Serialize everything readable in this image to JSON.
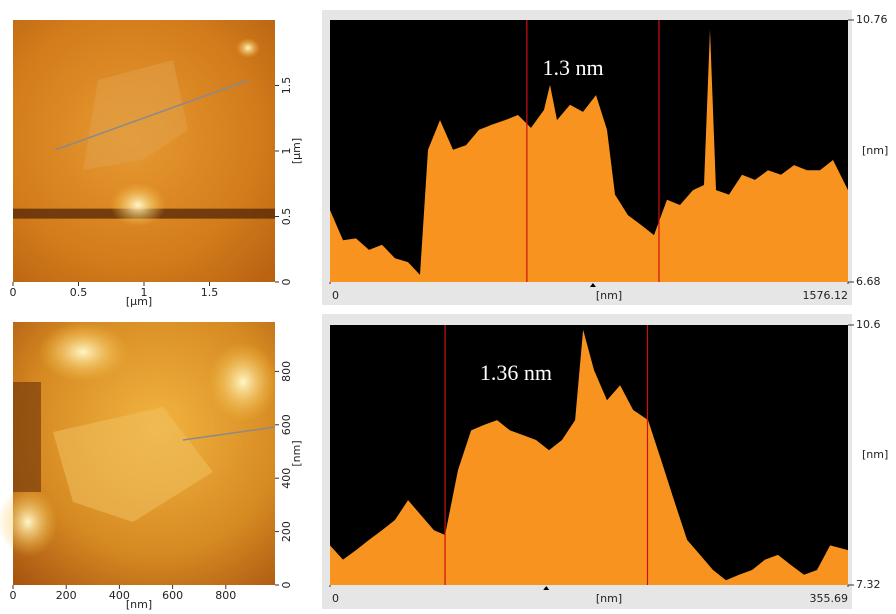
{
  "chart_data": [
    {
      "type": "afm-image",
      "xlim": [
        0,
        2
      ],
      "ylim": [
        0,
        2
      ],
      "xticks": [
        0,
        0.5,
        1,
        1.5
      ],
      "yticks": [
        0,
        0.5,
        1,
        1.5
      ],
      "xlabel": "[µm]",
      "ylabel": "[µm]"
    },
    {
      "type": "area",
      "annotation": "1.3 nm",
      "xlabel": "[nm]",
      "ylabel": "[nm]",
      "color": "#f7931e",
      "background": "#000000",
      "cursor_color": "#d01010",
      "xlim": [
        0,
        1576.12
      ],
      "ylim": [
        6.68,
        10.76
      ],
      "xticks": [
        0,
        1576.12
      ],
      "yticks": [
        6.68,
        10.76
      ],
      "cursors": [
        599,
        1001
      ],
      "x": [
        0,
        39.6,
        79.1,
        118.7,
        158.2,
        197.8,
        237.3,
        273.8,
        298.2,
        334.7,
        374.3,
        413.8,
        453.4,
        492.9,
        532.5,
        572.0,
        611.6,
        651.1,
        669.4,
        690.7,
        730.3,
        769.8,
        809.4,
        842.8,
        867.2,
        906.7,
        946.3,
        985.8,
        1025.4,
        1064.9,
        1104.5,
        1138.0,
        1156.2,
        1174.5,
        1214.0,
        1253.6,
        1293.1,
        1332.7,
        1372.3,
        1411.8,
        1451.4,
        1490.9,
        1530.5,
        1576.12
      ],
      "values": [
        7.8,
        7.33,
        7.36,
        7.18,
        7.26,
        7.05,
        6.99,
        6.79,
        8.74,
        9.2,
        8.74,
        8.81,
        9.05,
        9.13,
        9.2,
        9.28,
        9.08,
        9.36,
        9.75,
        9.2,
        9.44,
        9.33,
        9.59,
        9.05,
        8.04,
        7.72,
        7.57,
        7.41,
        7.96,
        7.88,
        8.11,
        8.19,
        10.61,
        8.11,
        8.04,
        8.35,
        8.27,
        8.42,
        8.35,
        8.5,
        8.42,
        8.42,
        8.58,
        8.11
      ]
    },
    {
      "type": "afm-image",
      "xlim": [
        0,
        985
      ],
      "ylim": [
        0,
        985
      ],
      "xticks": [
        0,
        200,
        400,
        600,
        800
      ],
      "yticks": [
        0,
        200,
        400,
        600,
        800
      ],
      "xlabel": "[nm]",
      "ylabel": "[nm]"
    },
    {
      "type": "area",
      "annotation": "1.36 nm",
      "xlabel": "[nm]",
      "ylabel": "[nm]",
      "color": "#f7931e",
      "background": "#000000",
      "cursor_color": "#d01010",
      "xlim": [
        0,
        355.69
      ],
      "ylim": [
        7.32,
        10.6
      ],
      "xticks": [
        0,
        355.69
      ],
      "yticks": [
        7.32,
        10.6
      ],
      "cursors": [
        79,
        218
      ],
      "x": [
        0,
        8.9,
        17.9,
        26.8,
        35.7,
        44.6,
        53.6,
        62.5,
        71.4,
        79.0,
        87.9,
        96.9,
        105.8,
        114.7,
        123.6,
        132.6,
        141.5,
        150.4,
        159.3,
        168.3,
        173.8,
        181.3,
        190.2,
        199.2,
        208.1,
        218.4,
        227.3,
        236.2,
        245.2,
        254.1,
        263.0,
        271.9,
        280.9,
        289.8,
        298.7,
        307.6,
        316.6,
        325.5,
        334.4,
        343.4,
        355.69
      ],
      "values": [
        7.82,
        7.64,
        7.76,
        7.89,
        8.01,
        8.14,
        8.39,
        8.2,
        8.01,
        7.95,
        8.77,
        9.27,
        9.34,
        9.4,
        9.27,
        9.21,
        9.15,
        9.02,
        9.15,
        9.4,
        10.54,
        10.03,
        9.65,
        9.84,
        9.53,
        9.4,
        8.9,
        8.39,
        7.89,
        7.7,
        7.51,
        7.38,
        7.45,
        7.51,
        7.64,
        7.7,
        7.57,
        7.45,
        7.51,
        7.82,
        7.76
      ]
    }
  ]
}
